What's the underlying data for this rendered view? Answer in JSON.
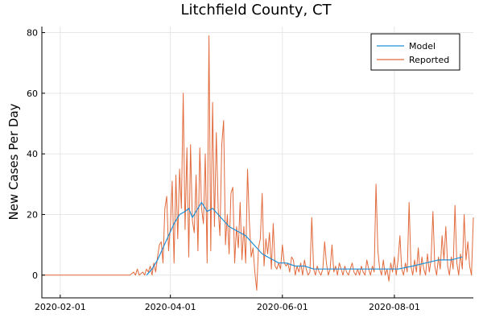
{
  "chart_data": {
    "type": "line",
    "title": "Litchfield County, CT",
    "xlabel": "",
    "ylabel": "New Cases Per Day",
    "x_type": "date",
    "xlim": [
      "2020-01-22",
      "2020-09-13"
    ],
    "ylim": [
      -7.5,
      82
    ],
    "x_ticks": [
      "2020-02-01",
      "2020-04-01",
      "2020-06-01",
      "2020-08-01"
    ],
    "y_ticks": [
      0,
      20,
      40,
      60,
      80
    ],
    "grid": true,
    "legend_position": "top-right",
    "series": [
      {
        "name": "Model",
        "color": "#1f8fd6",
        "points": [
          [
            "2020-03-19",
            0
          ],
          [
            "2020-03-22",
            2
          ],
          [
            "2020-03-25",
            5
          ],
          [
            "2020-03-28",
            9
          ],
          [
            "2020-03-31",
            13
          ],
          [
            "2020-04-03",
            17
          ],
          [
            "2020-04-06",
            20
          ],
          [
            "2020-04-09",
            21
          ],
          [
            "2020-04-11",
            22
          ],
          [
            "2020-04-13",
            19
          ],
          [
            "2020-04-15",
            21
          ],
          [
            "2020-04-18",
            24
          ],
          [
            "2020-04-21",
            21
          ],
          [
            "2020-04-24",
            22
          ],
          [
            "2020-04-27",
            20
          ],
          [
            "2020-04-30",
            18
          ],
          [
            "2020-05-03",
            16
          ],
          [
            "2020-05-06",
            15
          ],
          [
            "2020-05-09",
            14
          ],
          [
            "2020-05-12",
            13
          ],
          [
            "2020-05-15",
            11
          ],
          [
            "2020-05-18",
            9
          ],
          [
            "2020-05-21",
            7
          ],
          [
            "2020-05-24",
            6
          ],
          [
            "2020-05-27",
            5
          ],
          [
            "2020-05-30",
            4
          ],
          [
            "2020-06-03",
            4
          ],
          [
            "2020-06-08",
            3
          ],
          [
            "2020-06-13",
            3
          ],
          [
            "2020-06-18",
            2
          ],
          [
            "2020-06-25",
            2
          ],
          [
            "2020-07-02",
            2
          ],
          [
            "2020-07-10",
            2
          ],
          [
            "2020-07-18",
            2
          ],
          [
            "2020-07-26",
            2
          ],
          [
            "2020-08-03",
            2
          ],
          [
            "2020-08-11",
            3
          ],
          [
            "2020-08-18",
            4
          ],
          [
            "2020-08-25",
            5
          ],
          [
            "2020-09-01",
            5
          ],
          [
            "2020-09-07",
            6
          ]
        ]
      },
      {
        "name": "Reported",
        "color": "#e26a3c",
        "points": [
          [
            "2020-01-22",
            0
          ],
          [
            "2020-03-10",
            0
          ],
          [
            "2020-03-12",
            1
          ],
          [
            "2020-03-13",
            0
          ],
          [
            "2020-03-14",
            2
          ],
          [
            "2020-03-15",
            0
          ],
          [
            "2020-03-17",
            1
          ],
          [
            "2020-03-18",
            0
          ],
          [
            "2020-03-19",
            2
          ],
          [
            "2020-03-20",
            1
          ],
          [
            "2020-03-21",
            3
          ],
          [
            "2020-03-22",
            0
          ],
          [
            "2020-03-23",
            4
          ],
          [
            "2020-03-24",
            1
          ],
          [
            "2020-03-25",
            6
          ],
          [
            "2020-03-26",
            10
          ],
          [
            "2020-03-27",
            11
          ],
          [
            "2020-03-28",
            4
          ],
          [
            "2020-03-29",
            22
          ],
          [
            "2020-03-30",
            26
          ],
          [
            "2020-03-31",
            8
          ],
          [
            "2020-04-01",
            16
          ],
          [
            "2020-04-02",
            31
          ],
          [
            "2020-04-03",
            4
          ],
          [
            "2020-04-04",
            33
          ],
          [
            "2020-04-05",
            12
          ],
          [
            "2020-04-06",
            35
          ],
          [
            "2020-04-07",
            22
          ],
          [
            "2020-04-08",
            60
          ],
          [
            "2020-04-09",
            15
          ],
          [
            "2020-04-10",
            42
          ],
          [
            "2020-04-11",
            6
          ],
          [
            "2020-04-12",
            43
          ],
          [
            "2020-04-13",
            18
          ],
          [
            "2020-04-14",
            14
          ],
          [
            "2020-04-15",
            33
          ],
          [
            "2020-04-16",
            8
          ],
          [
            "2020-04-17",
            42
          ],
          [
            "2020-04-18",
            22
          ],
          [
            "2020-04-19",
            17
          ],
          [
            "2020-04-20",
            40
          ],
          [
            "2020-04-21",
            4
          ],
          [
            "2020-04-22",
            79
          ],
          [
            "2020-04-23",
            8
          ],
          [
            "2020-04-24",
            57
          ],
          [
            "2020-04-25",
            16
          ],
          [
            "2020-04-26",
            47
          ],
          [
            "2020-04-27",
            22
          ],
          [
            "2020-04-28",
            13
          ],
          [
            "2020-04-29",
            43
          ],
          [
            "2020-04-30",
            51
          ],
          [
            "2020-05-01",
            10
          ],
          [
            "2020-05-02",
            20
          ],
          [
            "2020-05-03",
            7
          ],
          [
            "2020-05-04",
            27
          ],
          [
            "2020-05-05",
            29
          ],
          [
            "2020-05-06",
            4
          ],
          [
            "2020-05-07",
            16
          ],
          [
            "2020-05-08",
            9
          ],
          [
            "2020-05-09",
            24
          ],
          [
            "2020-05-10",
            5
          ],
          [
            "2020-05-11",
            16
          ],
          [
            "2020-05-12",
            4
          ],
          [
            "2020-05-13",
            35
          ],
          [
            "2020-05-14",
            18
          ],
          [
            "2020-05-15",
            6
          ],
          [
            "2020-05-16",
            9
          ],
          [
            "2020-05-17",
            1
          ],
          [
            "2020-05-18",
            -5
          ],
          [
            "2020-05-19",
            9
          ],
          [
            "2020-05-20",
            12
          ],
          [
            "2020-05-21",
            27
          ],
          [
            "2020-05-22",
            3
          ],
          [
            "2020-05-23",
            12
          ],
          [
            "2020-05-24",
            7
          ],
          [
            "2020-05-25",
            14
          ],
          [
            "2020-05-26",
            2
          ],
          [
            "2020-05-27",
            17
          ],
          [
            "2020-05-28",
            3
          ],
          [
            "2020-05-29",
            2
          ],
          [
            "2020-05-30",
            4
          ],
          [
            "2020-05-31",
            2
          ],
          [
            "2020-06-01",
            10
          ],
          [
            "2020-06-02",
            4
          ],
          [
            "2020-06-03",
            3
          ],
          [
            "2020-06-04",
            4
          ],
          [
            "2020-06-05",
            1
          ],
          [
            "2020-06-06",
            6
          ],
          [
            "2020-06-07",
            5
          ],
          [
            "2020-06-08",
            0
          ],
          [
            "2020-06-09",
            3
          ],
          [
            "2020-06-10",
            1
          ],
          [
            "2020-06-11",
            4
          ],
          [
            "2020-06-12",
            0
          ],
          [
            "2020-06-13",
            5
          ],
          [
            "2020-06-14",
            2
          ],
          [
            "2020-06-15",
            0
          ],
          [
            "2020-06-16",
            1
          ],
          [
            "2020-06-17",
            19
          ],
          [
            "2020-06-18",
            2
          ],
          [
            "2020-06-19",
            0
          ],
          [
            "2020-06-20",
            3
          ],
          [
            "2020-06-21",
            1
          ],
          [
            "2020-06-22",
            0
          ],
          [
            "2020-06-23",
            2
          ],
          [
            "2020-06-24",
            11
          ],
          [
            "2020-06-25",
            4
          ],
          [
            "2020-06-26",
            0
          ],
          [
            "2020-06-27",
            2
          ],
          [
            "2020-06-28",
            10
          ],
          [
            "2020-06-29",
            1
          ],
          [
            "2020-06-30",
            3
          ],
          [
            "2020-07-01",
            0
          ],
          [
            "2020-07-02",
            4
          ],
          [
            "2020-07-03",
            2
          ],
          [
            "2020-07-04",
            0
          ],
          [
            "2020-07-05",
            3
          ],
          [
            "2020-07-06",
            1
          ],
          [
            "2020-07-07",
            0
          ],
          [
            "2020-07-08",
            2
          ],
          [
            "2020-07-09",
            4
          ],
          [
            "2020-07-10",
            1
          ],
          [
            "2020-07-11",
            0
          ],
          [
            "2020-07-12",
            2
          ],
          [
            "2020-07-13",
            0
          ],
          [
            "2020-07-14",
            3
          ],
          [
            "2020-07-15",
            1
          ],
          [
            "2020-07-16",
            0
          ],
          [
            "2020-07-17",
            5
          ],
          [
            "2020-07-18",
            2
          ],
          [
            "2020-07-19",
            0
          ],
          [
            "2020-07-20",
            3
          ],
          [
            "2020-07-21",
            1
          ],
          [
            "2020-07-22",
            30
          ],
          [
            "2020-07-23",
            8
          ],
          [
            "2020-07-24",
            2
          ],
          [
            "2020-07-25",
            0
          ],
          [
            "2020-07-26",
            5
          ],
          [
            "2020-07-27",
            0
          ],
          [
            "2020-07-28",
            2
          ],
          [
            "2020-07-29",
            -2
          ],
          [
            "2020-07-30",
            4
          ],
          [
            "2020-07-31",
            1
          ],
          [
            "2020-08-01",
            6
          ],
          [
            "2020-08-02",
            0
          ],
          [
            "2020-08-03",
            5
          ],
          [
            "2020-08-04",
            13
          ],
          [
            "2020-08-05",
            2
          ],
          [
            "2020-08-06",
            0
          ],
          [
            "2020-08-07",
            4
          ],
          [
            "2020-08-08",
            1
          ],
          [
            "2020-08-09",
            24
          ],
          [
            "2020-08-10",
            3
          ],
          [
            "2020-08-11",
            0
          ],
          [
            "2020-08-12",
            5
          ],
          [
            "2020-08-13",
            1
          ],
          [
            "2020-08-14",
            9
          ],
          [
            "2020-08-15",
            0
          ],
          [
            "2020-08-16",
            6
          ],
          [
            "2020-08-17",
            2
          ],
          [
            "2020-08-18",
            0
          ],
          [
            "2020-08-19",
            7
          ],
          [
            "2020-08-20",
            1
          ],
          [
            "2020-08-21",
            5
          ],
          [
            "2020-08-22",
            21
          ],
          [
            "2020-08-23",
            3
          ],
          [
            "2020-08-24",
            0
          ],
          [
            "2020-08-25",
            6
          ],
          [
            "2020-08-26",
            2
          ],
          [
            "2020-08-27",
            13
          ],
          [
            "2020-08-28",
            5
          ],
          [
            "2020-08-29",
            16
          ],
          [
            "2020-08-30",
            3
          ],
          [
            "2020-08-31",
            0
          ],
          [
            "2020-09-01",
            6
          ],
          [
            "2020-09-02",
            2
          ],
          [
            "2020-09-03",
            23
          ],
          [
            "2020-09-04",
            4
          ],
          [
            "2020-09-05",
            0
          ],
          [
            "2020-09-06",
            7
          ],
          [
            "2020-09-07",
            2
          ],
          [
            "2020-09-08",
            20
          ],
          [
            "2020-09-09",
            5
          ],
          [
            "2020-09-10",
            11
          ],
          [
            "2020-09-11",
            3
          ],
          [
            "2020-09-12",
            0
          ],
          [
            "2020-09-13",
            19
          ]
        ]
      }
    ]
  }
}
